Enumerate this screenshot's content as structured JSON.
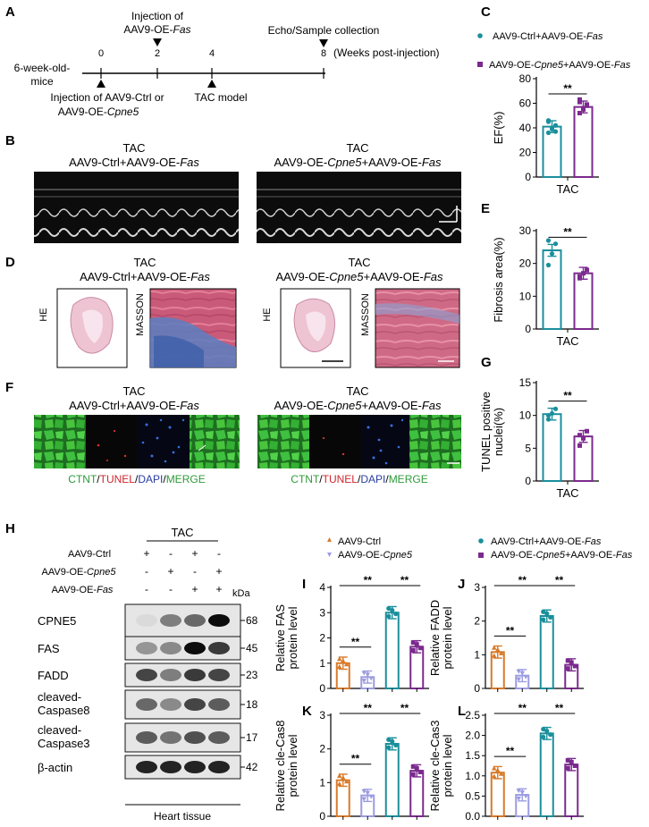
{
  "panels": {
    "A": "A",
    "B": "B",
    "C": "C",
    "D": "D",
    "E": "E",
    "F": "F",
    "G": "G",
    "H": "H",
    "I": "I",
    "J": "J",
    "K": "K",
    "L": "L"
  },
  "groups": {
    "ctrl_fas": {
      "pre": "AAV9-Ctrl+AAV9-OE-",
      "it": "Fas"
    },
    "cpne5_fas": {
      "pre": "AAV9-OE-",
      "it1": "Cpne5",
      "mid": "+AAV9-OE-",
      "it2": "Fas"
    },
    "ctrl": "AAV9-Ctrl",
    "cpne5": {
      "pre": "AAV9-OE-",
      "it": "Cpne5"
    },
    "fas": {
      "pre": "AAV9-OE-",
      "it": "Fas"
    }
  },
  "timeline": {
    "ticks": [
      "0",
      "2",
      "4",
      "8"
    ],
    "start_label": [
      "6-week-old-",
      "mice"
    ],
    "injection_fas": [
      "Injection of",
      "AAV9-OE-"
    ],
    "injection_fas_it": "Fas",
    "echo": "Echo/Sample collection",
    "weeks": "(Weeks post-injection)",
    "injection_ctrl": "Injection of AAV9-Ctrl or",
    "injection_ctrl2": "AAV9-OE-",
    "injection_ctrl2_it": "Cpne5",
    "tac_model": "TAC model"
  },
  "condition": "TAC",
  "histology": {
    "he": "HE",
    "masson": "MASSON"
  },
  "stain_legend": {
    "a": "CTNT",
    "b": "TUNEL",
    "c": "DAPI",
    "d": "MERGE",
    "slash": "/",
    "color_a": "#2e9b3a",
    "color_b": "#d0262e",
    "color_c": "#2a3da0",
    "color_d": "#2e9b3a"
  },
  "colors": {
    "teal": "#1a8f9c",
    "purple": "#7b2a8e",
    "orange": "#d87a2a",
    "lavender": "#9c9ce0"
  },
  "sig": "**",
  "blot": {
    "condition": "TAC",
    "treatment_rows": [
      {
        "signs": [
          "+",
          "-",
          "+",
          "-"
        ]
      },
      {
        "signs": [
          "-",
          "+",
          "-",
          "+"
        ]
      },
      {
        "signs": [
          "-",
          "-",
          "+",
          "+"
        ]
      }
    ],
    "kda": "kDa",
    "proteins": [
      {
        "name": "CPNE5",
        "mw": "68"
      },
      {
        "name": "FAS",
        "mw": "45"
      },
      {
        "name": "FADD",
        "mw": "23"
      },
      {
        "name": "cleaved-",
        "name2": "Caspase8",
        "mw": "18"
      },
      {
        "name": "cleaved-",
        "name2": "Caspase3",
        "mw": "17"
      },
      {
        "name": "β-actin",
        "mw": "42"
      }
    ],
    "tissue": "Heart tissue"
  },
  "chart_data": [
    {
      "id": "C",
      "type": "bar",
      "xlabel": "TAC",
      "ylabel": "EF(%)",
      "ylim": [
        0,
        80
      ],
      "yticks": [
        0,
        20,
        40,
        60,
        80
      ],
      "series": [
        {
          "name": "AAV9-Ctrl+AAV9-OE-Fas",
          "values": [
            41
          ],
          "points": [
            36,
            39,
            42,
            45,
            40,
            37,
            46
          ]
        },
        {
          "name": "AAV9-OE-Cpne5+AAV9-OE-Fas",
          "values": [
            57
          ],
          "points": [
            52,
            55,
            58,
            61,
            56,
            59,
            63
          ]
        }
      ]
    },
    {
      "id": "E",
      "type": "bar",
      "xlabel": "TAC",
      "ylabel": "Fibrosis area(%)",
      "ylim": [
        0,
        30
      ],
      "yticks": [
        0,
        10,
        20,
        30
      ],
      "series": [
        {
          "name": "AAV9-Ctrl+AAV9-OE-Fas",
          "values": [
            24
          ],
          "points": [
            19.5,
            23,
            26,
            27
          ]
        },
        {
          "name": "AAV9-OE-Cpne5+AAV9-OE-Fas",
          "values": [
            17
          ],
          "points": [
            15.5,
            17,
            18,
            16
          ]
        }
      ]
    },
    {
      "id": "G",
      "type": "bar",
      "xlabel": "TAC",
      "ylabel": "TUNEL positive nuclei(%)",
      "ylabel_lines": [
        "TUNEL positive",
        "nuclei(%)"
      ],
      "ylim": [
        0,
        15
      ],
      "yticks": [
        0,
        5,
        10,
        15
      ],
      "series": [
        {
          "name": "AAV9-Ctrl+AAV9-OE-Fas",
          "values": [
            10.2
          ],
          "points": [
            9.4,
            10.3,
            11,
            10
          ]
        },
        {
          "name": "AAV9-OE-Cpne5+AAV9-OE-Fas",
          "values": [
            6.8
          ],
          "points": [
            5.4,
            6.5,
            7.6,
            7
          ]
        }
      ]
    },
    {
      "id": "I",
      "type": "bar",
      "ylabel_lines": [
        "Relative FAS",
        "protein level"
      ],
      "ylim": [
        0,
        4
      ],
      "yticks": [
        0,
        1,
        2,
        3,
        4
      ],
      "series": [
        {
          "name": "AAV9-Ctrl",
          "values": [
            1.0
          ]
        },
        {
          "name": "AAV9-OE-Cpne5",
          "values": [
            0.45
          ]
        },
        {
          "name": "AAV9-Ctrl+AAV9-OE-Fas",
          "values": [
            3.0
          ]
        },
        {
          "name": "AAV9-OE-Cpne5+AAV9-OE-Fas",
          "values": [
            1.65
          ]
        }
      ]
    },
    {
      "id": "J",
      "type": "bar",
      "ylabel_lines": [
        "Relative FADD",
        "protein level"
      ],
      "ylim": [
        0,
        3
      ],
      "yticks": [
        0,
        1,
        2,
        3
      ],
      "series": [
        {
          "name": "AAV9-Ctrl",
          "values": [
            1.08
          ]
        },
        {
          "name": "AAV9-OE-Cpne5",
          "values": [
            0.38
          ]
        },
        {
          "name": "AAV9-Ctrl+AAV9-OE-Fas",
          "values": [
            2.15
          ]
        },
        {
          "name": "AAV9-OE-Cpne5+AAV9-OE-Fas",
          "values": [
            0.7
          ]
        }
      ]
    },
    {
      "id": "K",
      "type": "bar",
      "ylabel_lines": [
        "Relative cle-Cas8",
        "protein level"
      ],
      "ylim": [
        0,
        3
      ],
      "yticks": [
        0,
        1,
        2,
        3
      ],
      "series": [
        {
          "name": "AAV9-Ctrl",
          "values": [
            1.07
          ]
        },
        {
          "name": "AAV9-OE-Cpne5",
          "values": [
            0.62
          ]
        },
        {
          "name": "AAV9-Ctrl+AAV9-OE-Fas",
          "values": [
            2.15
          ]
        },
        {
          "name": "AAV9-OE-Cpne5+AAV9-OE-Fas",
          "values": [
            1.35
          ]
        }
      ]
    },
    {
      "id": "L",
      "type": "bar",
      "ylabel_lines": [
        "Relative cle-Cas3",
        "protein level"
      ],
      "ylim": [
        0,
        2.5
      ],
      "yticks": [
        0,
        0.5,
        1.0,
        1.5,
        2.0,
        2.5
      ],
      "series": [
        {
          "name": "AAV9-Ctrl",
          "values": [
            1.08
          ]
        },
        {
          "name": "AAV9-OE-Cpne5",
          "values": [
            0.53
          ]
        },
        {
          "name": "AAV9-Ctrl+AAV9-OE-Fas",
          "values": [
            2.05
          ]
        },
        {
          "name": "AAV9-OE-Cpne5+AAV9-OE-Fas",
          "values": [
            1.28
          ]
        }
      ]
    }
  ]
}
